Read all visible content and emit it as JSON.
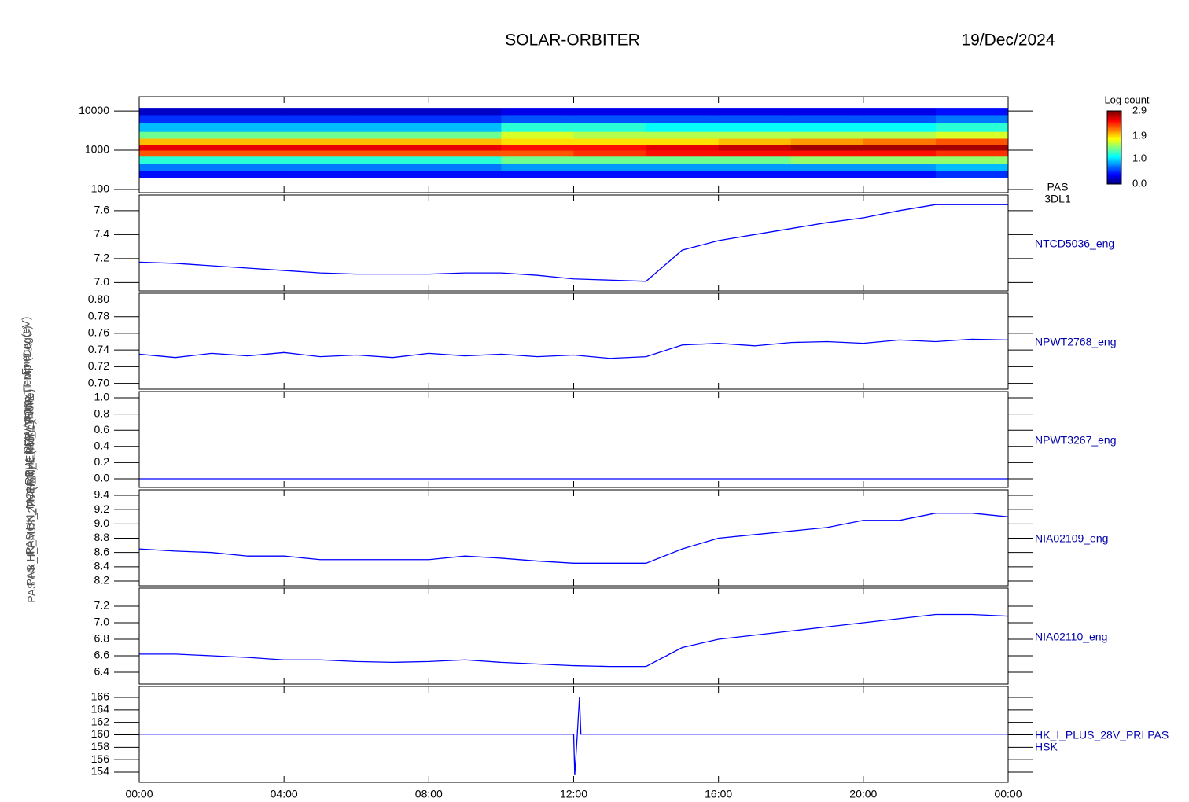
{
  "title": "SOLAR-ORBITER",
  "date": "19/Dec/2024",
  "chart_data": [
    {
      "type": "heatmap",
      "ylabel": "Energy (eV)",
      "labels": [
        "PAS",
        "3DL1"
      ],
      "log_y": true,
      "xlim": [
        0,
        24
      ],
      "ylim": [
        83,
        23000
      ],
      "yticks": [
        100,
        1000,
        10000
      ],
      "x_edges": [
        0,
        2,
        4,
        6,
        8,
        10,
        12,
        14,
        16,
        18,
        20,
        22,
        24
      ],
      "y_edges": [
        200,
        300,
        450,
        700,
        1000,
        1400,
        2000,
        3000,
        5000,
        8000,
        12000
      ],
      "z": [
        [
          0.4,
          0.4,
          0.4,
          0.4,
          0.4,
          0.4,
          0.4,
          0.4,
          0.4,
          0.4,
          0.4,
          0.5
        ],
        [
          0.7,
          0.7,
          0.7,
          0.7,
          0.7,
          0.8,
          0.8,
          0.8,
          0.8,
          0.8,
          0.8,
          0.9
        ],
        [
          1.2,
          1.2,
          1.2,
          1.2,
          1.2,
          1.4,
          1.4,
          1.4,
          1.4,
          1.5,
          1.5,
          1.5
        ],
        [
          2.3,
          2.3,
          2.3,
          2.3,
          2.3,
          2.3,
          2.4,
          2.5,
          2.5,
          2.5,
          2.5,
          2.4
        ],
        [
          2.6,
          2.6,
          2.6,
          2.6,
          2.6,
          2.5,
          2.5,
          2.6,
          2.7,
          2.8,
          2.8,
          2.8
        ],
        [
          2.0,
          2.0,
          2.0,
          2.0,
          2.0,
          1.9,
          1.9,
          1.9,
          2.0,
          2.1,
          2.2,
          2.3
        ],
        [
          1.4,
          1.4,
          1.4,
          1.4,
          1.4,
          1.7,
          1.6,
          1.6,
          1.6,
          1.6,
          1.6,
          1.7
        ],
        [
          0.9,
          0.9,
          0.9,
          0.9,
          0.9,
          1.2,
          1.2,
          1.1,
          1.1,
          1.1,
          1.1,
          1.2
        ],
        [
          0.5,
          0.5,
          0.5,
          0.5,
          0.5,
          0.6,
          0.6,
          0.6,
          0.6,
          0.6,
          0.6,
          0.7
        ],
        [
          0.2,
          0.2,
          0.2,
          0.2,
          0.2,
          0.3,
          0.3,
          0.3,
          0.3,
          0.3,
          0.3,
          0.4
        ]
      ],
      "colorbar": {
        "title": "Log count",
        "clim": [
          0,
          2.9
        ],
        "ticks": [
          {
            "value": 0,
            "label": "0.0"
          },
          {
            "value": 1,
            "label": "1.0"
          },
          1.9,
          2.9
        ]
      }
    },
    {
      "type": "line",
      "ylabel": "Approx Temp (DegC)",
      "xlim": [
        0,
        24
      ],
      "ylim": [
        6.93,
        7.73
      ],
      "yticks": [
        {
          "value": 7,
          "label": "7.0"
        },
        7.2,
        7.4,
        7.6
      ],
      "x": [
        0,
        1,
        2,
        3,
        4,
        5,
        6,
        7,
        8,
        9,
        10,
        11,
        12,
        13,
        14,
        15,
        16,
        17,
        18,
        19,
        20,
        21,
        22,
        23,
        24
      ],
      "series": [
        {
          "name": "NTCD5036_eng",
          "color": "#0000ff",
          "values": [
            7.17,
            7.16,
            7.14,
            7.12,
            7.1,
            7.08,
            7.07,
            7.07,
            7.07,
            7.08,
            7.08,
            7.06,
            7.03,
            7.02,
            7.01,
            7.27,
            7.35,
            7.4,
            7.45,
            7.5,
            7.54,
            7.6,
            7.65,
            7.65,
            7.65
          ]
        }
      ]
    },
    {
      "type": "line",
      "ylabel": "RPW_TDS_TEMP",
      "xlim": [
        0,
        24
      ],
      "ylim": [
        0.693,
        0.808
      ],
      "yticks": [
        {
          "value": 0.7,
          "label": "0.70"
        },
        0.72,
        0.74,
        0.76,
        0.78,
        {
          "value": 0.8,
          "label": "0.80"
        }
      ],
      "x": [
        0,
        1,
        2,
        3,
        4,
        5,
        6,
        7,
        8,
        9,
        10,
        11,
        12,
        13,
        14,
        15,
        16,
        17,
        18,
        19,
        20,
        21,
        22,
        23,
        24
      ],
      "series": [
        {
          "name": "NPWT2768_eng",
          "color": "#0000ff",
          "values": [
            0.735,
            0.731,
            0.736,
            0.733,
            0.737,
            0.732,
            0.734,
            0.731,
            0.736,
            0.733,
            0.735,
            0.732,
            0.734,
            0.73,
            0.732,
            0.746,
            0.748,
            0.745,
            0.749,
            0.75,
            0.748,
            0.752,
            0.75,
            0.753,
            0.752
          ]
        }
      ]
    },
    {
      "type": "line",
      "ylabel": "RPW_LFR_TEMP",
      "xlim": [
        0,
        24
      ],
      "ylim": [
        -0.107,
        1.078
      ],
      "yticks": [
        {
          "value": 0,
          "label": "0.0"
        },
        0.2,
        0.4,
        0.6,
        0.8,
        {
          "value": 1,
          "label": "1.0"
        }
      ],
      "x": [
        0,
        1,
        2,
        3,
        4,
        5,
        6,
        7,
        8,
        9,
        10,
        11,
        12,
        13,
        14,
        15,
        16,
        17,
        18,
        19,
        20,
        21,
        22,
        23,
        24
      ],
      "series": [
        {
          "name": "NPWT3267_eng",
          "color": "#0000ff",
          "values": [
            0,
            0,
            0,
            0,
            0,
            0,
            0,
            0,
            0,
            0,
            0,
            0,
            0,
            0,
            0,
            0,
            0,
            0,
            0,
            0,
            0,
            0,
            0,
            0,
            0
          ]
        }
      ]
    },
    {
      "type": "line",
      "ylabel": "PAS HK_MON_THERM_1 (None)",
      "xlim": [
        0,
        24
      ],
      "ylim": [
        8.134,
        9.477
      ],
      "yticks": [
        8.2,
        8.4,
        8.6,
        8.8,
        {
          "value": 9,
          "label": "9.0"
        },
        9.2,
        9.4
      ],
      "x": [
        0,
        1,
        2,
        3,
        4,
        5,
        6,
        7,
        8,
        9,
        10,
        11,
        12,
        13,
        14,
        15,
        16,
        17,
        18,
        19,
        20,
        21,
        22,
        23,
        24
      ],
      "series": [
        {
          "name": "NIA02109_eng",
          "color": "#0000ff",
          "values": [
            8.65,
            8.62,
            8.6,
            8.55,
            8.55,
            8.5,
            8.5,
            8.5,
            8.5,
            8.55,
            8.52,
            8.48,
            8.45,
            8.45,
            8.45,
            8.65,
            8.8,
            8.85,
            8.9,
            8.95,
            9.05,
            9.05,
            9.15,
            9.15,
            9.1
          ]
        }
      ]
    },
    {
      "type": "line",
      "ylabel": "PAS HK_MON_THERM_2 (None)",
      "xlim": [
        0,
        24
      ],
      "ylim": [
        6.257,
        7.419
      ],
      "yticks": [
        6.4,
        6.6,
        6.8,
        {
          "value": 7,
          "label": "7.0"
        },
        7.2
      ],
      "x": [
        0,
        1,
        2,
        3,
        4,
        5,
        6,
        7,
        8,
        9,
        10,
        11,
        12,
        13,
        14,
        15,
        16,
        17,
        18,
        19,
        20,
        21,
        22,
        23,
        24
      ],
      "series": [
        {
          "name": "NIA02110_eng",
          "color": "#0000ff",
          "values": [
            6.62,
            6.62,
            6.6,
            6.58,
            6.55,
            6.55,
            6.53,
            6.52,
            6.53,
            6.55,
            6.52,
            6.5,
            6.48,
            6.47,
            6.47,
            6.7,
            6.8,
            6.85,
            6.9,
            6.95,
            7.0,
            7.05,
            7.1,
            7.1,
            7.08
          ]
        }
      ]
    },
    {
      "type": "line",
      "ylabel": "PAS HK_I_PLUS_28V (mA)",
      "sublabel": "HSK",
      "xlim": [
        0,
        24
      ],
      "ylim": [
        152.36,
        167.77
      ],
      "yticks": [
        154,
        156,
        158,
        160,
        162,
        164,
        166
      ],
      "xticks": [
        {
          "value": 0,
          "label": "00:00"
        },
        {
          "value": 4,
          "label": "04:00"
        },
        {
          "value": 8,
          "label": "08:00"
        },
        {
          "value": 12,
          "label": "12:00"
        },
        {
          "value": 16,
          "label": "16:00"
        },
        {
          "value": 20,
          "label": "20:00"
        },
        {
          "value": 24,
          "label": "00:00"
        }
      ],
      "x": [
        0,
        1,
        2,
        3,
        4,
        5,
        6,
        7,
        8,
        9,
        10,
        11,
        12,
        12.03,
        12.1,
        12.16,
        12.2,
        13,
        14,
        15,
        16,
        17,
        18,
        19,
        20,
        21,
        22,
        23,
        24
      ],
      "series": [
        {
          "name": "HK_I_PLUS_28V_PRI PAS",
          "color": "#0000ff",
          "values": [
            160.1,
            160.1,
            160.1,
            160.1,
            160.1,
            160.1,
            160.1,
            160.1,
            160.1,
            160.1,
            160.1,
            160.1,
            160.1,
            153.5,
            160,
            166,
            160.1,
            160.1,
            160.1,
            160.1,
            160.1,
            160.1,
            160.1,
            160.1,
            160.1,
            160.1,
            160.1,
            160.1,
            160.1
          ]
        }
      ]
    }
  ]
}
